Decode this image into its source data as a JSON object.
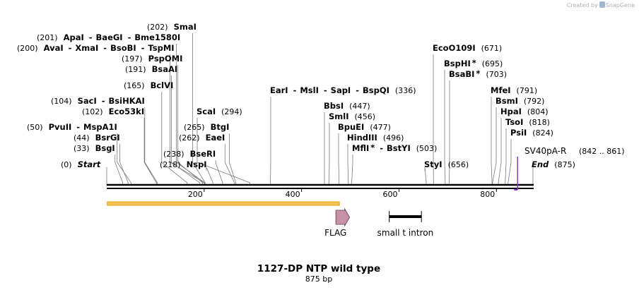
{
  "credit": {
    "prefix": "Created by",
    "brand": "SnapGene"
  },
  "map": {
    "title": "1127-DP NTP wild type",
    "length_label": "875 bp",
    "total_bp": 875,
    "ticks": [
      200,
      400,
      600,
      800
    ],
    "colors": {
      "backbone": "#000000",
      "primer": "#9932CC",
      "orf": "#E8A000",
      "flag": "#C792A6"
    }
  },
  "labels": [
    {
      "id": "smai",
      "site": 202,
      "pos": "(202)",
      "parts": [
        {
          "n": "SmaI"
        }
      ]
    },
    {
      "id": "apai",
      "site": 201,
      "pos": "(201)",
      "parts": [
        {
          "n": "ApaI"
        },
        {
          "n": "BaeGI"
        },
        {
          "n": "Bme1580I"
        }
      ]
    },
    {
      "id": "avai",
      "site": 200,
      "pos": "(200)",
      "parts": [
        {
          "n": "AvaI"
        },
        {
          "n": "XmaI"
        },
        {
          "n": "BsoBI"
        },
        {
          "n": "TspMI"
        }
      ]
    },
    {
      "id": "pspomi",
      "site": 197,
      "pos": "(197)",
      "parts": [
        {
          "n": "PspOMI"
        }
      ]
    },
    {
      "id": "bsaai",
      "site": 191,
      "pos": "(191)",
      "parts": [
        {
          "n": "BsaAI"
        }
      ]
    },
    {
      "id": "bclvi",
      "site": 165,
      "pos": "(165)",
      "parts": [
        {
          "n": "BclVI"
        }
      ]
    },
    {
      "id": "saci",
      "site": 104,
      "pos": "(104)",
      "parts": [
        {
          "n": "SacI"
        },
        {
          "n": "BsiHKAI"
        }
      ]
    },
    {
      "id": "eco53ki",
      "site": 102,
      "pos": "(102)",
      "parts": [
        {
          "n": "Eco53kI"
        }
      ]
    },
    {
      "id": "pvuii",
      "site": 50,
      "pos": "(50)",
      "parts": [
        {
          "n": "PvuII"
        },
        {
          "n": "MspA1I"
        }
      ]
    },
    {
      "id": "bsrgi",
      "site": 44,
      "pos": "(44)",
      "parts": [
        {
          "n": "BsrGI"
        }
      ]
    },
    {
      "id": "bsgi",
      "site": 33,
      "pos": "(33)",
      "parts": [
        {
          "n": "BsgI"
        }
      ]
    },
    {
      "id": "start",
      "site": 0,
      "pos": "(0)",
      "parts": [
        {
          "n": "Start",
          "italic": true
        }
      ]
    },
    {
      "id": "scai",
      "site": 294,
      "pos": "(294)",
      "parts": [
        {
          "n": "ScaI"
        }
      ]
    },
    {
      "id": "btgi",
      "site": 265,
      "pos": "(265)",
      "parts": [
        {
          "n": "BtgI"
        }
      ]
    },
    {
      "id": "eaei",
      "site": 262,
      "pos": "(262)",
      "parts": [
        {
          "n": "EaeI"
        }
      ]
    },
    {
      "id": "beseri",
      "site": 238,
      "pos": "(238)",
      "parts": [
        {
          "n": "BseRI"
        }
      ]
    },
    {
      "id": "nspi",
      "site": 218,
      "pos": "(218)",
      "parts": [
        {
          "n": "NspI"
        }
      ]
    },
    {
      "id": "eari",
      "site": 336,
      "pos": "(336)",
      "parts": [
        {
          "n": "EarI"
        },
        {
          "n": "MslI"
        },
        {
          "n": "SapI"
        },
        {
          "n": "BspQI"
        }
      ]
    },
    {
      "id": "bbsi",
      "site": 447,
      "pos": "(447)",
      "parts": [
        {
          "n": "BbsI"
        }
      ]
    },
    {
      "id": "smli",
      "site": 456,
      "pos": "(456)",
      "parts": [
        {
          "n": "SmlI"
        }
      ]
    },
    {
      "id": "bpuei",
      "site": 477,
      "pos": "(477)",
      "parts": [
        {
          "n": "BpuEI"
        }
      ]
    },
    {
      "id": "hindiii",
      "site": 496,
      "pos": "(496)",
      "parts": [
        {
          "n": "HindIII"
        }
      ]
    },
    {
      "id": "mfli",
      "site": 503,
      "pos": "(503)",
      "parts": [
        {
          "n": "MflI",
          "star": true
        },
        {
          "n": "BstYI"
        }
      ]
    },
    {
      "id": "ecoo109i",
      "site": 671,
      "pos": "(671)",
      "parts": [
        {
          "n": "EcoO109I"
        }
      ]
    },
    {
      "id": "bsphi",
      "site": 695,
      "pos": "(695)",
      "parts": [
        {
          "n": "BspHI",
          "star": true
        }
      ]
    },
    {
      "id": "bsabi",
      "site": 703,
      "pos": "(703)",
      "parts": [
        {
          "n": "BsaBI",
          "star": true
        }
      ]
    },
    {
      "id": "styi",
      "site": 656,
      "pos": "(656)",
      "parts": [
        {
          "n": "StyI"
        }
      ]
    },
    {
      "id": "mfei",
      "site": 791,
      "pos": "(791)",
      "parts": [
        {
          "n": "MfeI"
        }
      ]
    },
    {
      "id": "bsmi",
      "site": 792,
      "pos": "(792)",
      "parts": [
        {
          "n": "BsmI"
        }
      ]
    },
    {
      "id": "hpai",
      "site": 804,
      "pos": "(804)",
      "parts": [
        {
          "n": "HpaI"
        }
      ]
    },
    {
      "id": "tsoi",
      "site": 818,
      "pos": "(818)",
      "parts": [
        {
          "n": "TsoI"
        }
      ]
    },
    {
      "id": "psii",
      "site": 824,
      "pos": "(824)",
      "parts": [
        {
          "n": "PsiI"
        }
      ]
    },
    {
      "id": "end",
      "site": 875,
      "pos": "(875)",
      "parts": [
        {
          "n": "End",
          "italic": true
        }
      ]
    }
  ],
  "features": [
    {
      "id": "orf",
      "type": "orf",
      "name": "",
      "start": 1,
      "end": 490
    },
    {
      "id": "flag",
      "type": "tag",
      "name": "FLAG",
      "start": 466,
      "end": 490
    },
    {
      "id": "intron",
      "type": "intron",
      "name": "small t intron",
      "start": 580,
      "end": 646
    }
  ],
  "primer": {
    "name": "SV40pA-R",
    "range": "(842 .. 861)",
    "start": 842,
    "end": 861
  }
}
